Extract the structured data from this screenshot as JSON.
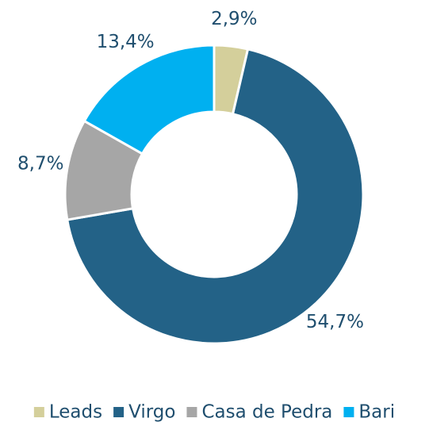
{
  "chart_data": {
    "type": "donut",
    "categories": [
      "Leads",
      "Virgo",
      "Casa de Pedra",
      "Bari"
    ],
    "values": [
      2.9,
      54.7,
      8.7,
      13.4
    ],
    "value_labels": [
      "2,9%",
      "54,7%",
      "8,7%",
      "13,4%"
    ],
    "colors": [
      "#d4cf9b",
      "#236287",
      "#a6a6a6",
      "#00b0f0"
    ],
    "legend": "bottom"
  }
}
